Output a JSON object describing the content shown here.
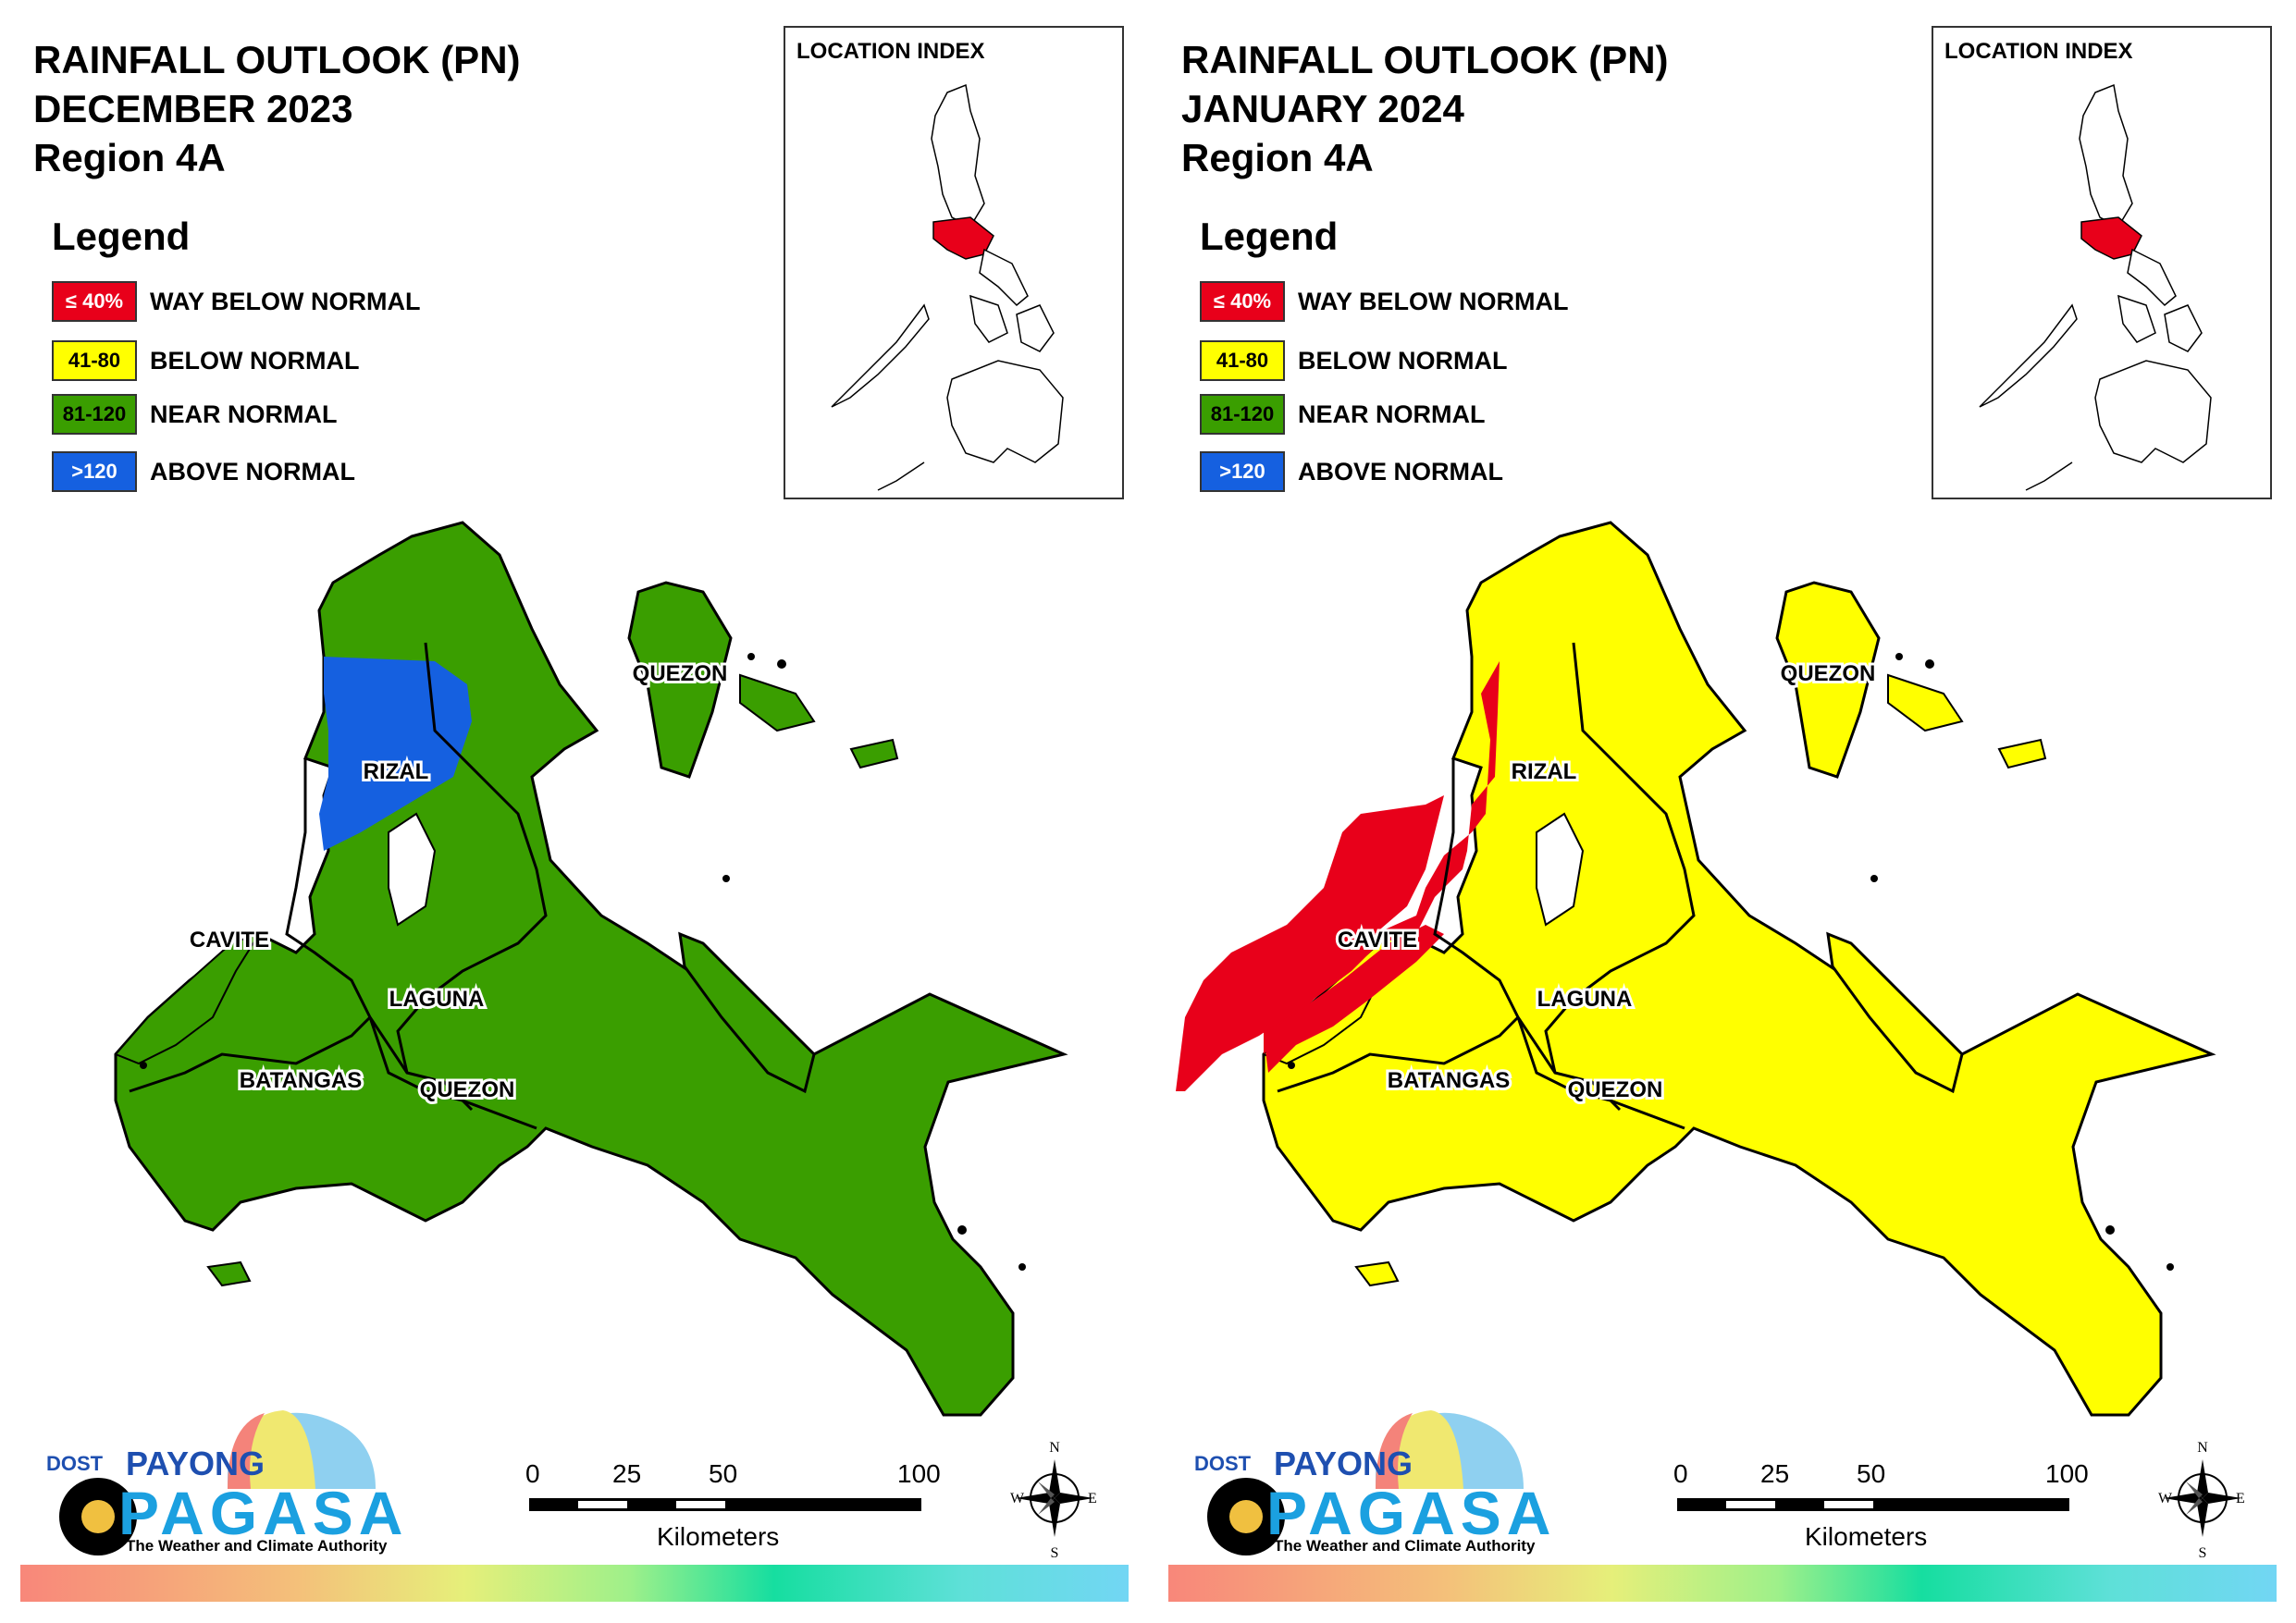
{
  "colors": {
    "way_below": "#e8001a",
    "below": "#ffff00",
    "near": "#3a9e00",
    "above": "#1560e0",
    "border": "#000000"
  },
  "legend": {
    "heading": "Legend",
    "items": [
      {
        "range": "≤ 40%",
        "label": "WAY BELOW NORMAL"
      },
      {
        "range": "41-80",
        "label": "BELOW NORMAL"
      },
      {
        "range": "81-120",
        "label": "NEAR NORMAL"
      },
      {
        "range": ">120",
        "label": "ABOVE NORMAL"
      }
    ]
  },
  "location_index": {
    "title": "LOCATION INDEX"
  },
  "province_labels": {
    "quezon_north": "QUEZON",
    "rizal": "RIZAL",
    "cavite": "CAVITE",
    "laguna": "LAGUNA",
    "batangas": "BATANGAS",
    "quezon_south": "QUEZON"
  },
  "scale": {
    "ticks": [
      "0",
      "25",
      "50",
      "100"
    ],
    "unit": "Kilometers"
  },
  "compass": {
    "n": "N",
    "e": "E",
    "s": "S",
    "w": "W"
  },
  "logo": {
    "dost": "DOST",
    "payong": "PAYONG",
    "pagasa": "PAGASA",
    "tagline": "The Weather and Climate Authority"
  },
  "panels": [
    {
      "title_line1": "RAINFALL OUTLOOK (PN)",
      "title_line2": "DECEMBER 2023",
      "title_line3": "Region 4A",
      "base_category": "near",
      "overlay_category": "above",
      "overlay_areas": [
        "Rizal (western half)"
      ]
    },
    {
      "title_line1": "RAINFALL OUTLOOK (PN)",
      "title_line2": "JANUARY 2024",
      "title_line3": "Region 4A",
      "base_category": "below",
      "overlay_category": "way_below",
      "overlay_areas": [
        "Cavite",
        "western Batangas",
        "western Rizal"
      ]
    }
  ]
}
